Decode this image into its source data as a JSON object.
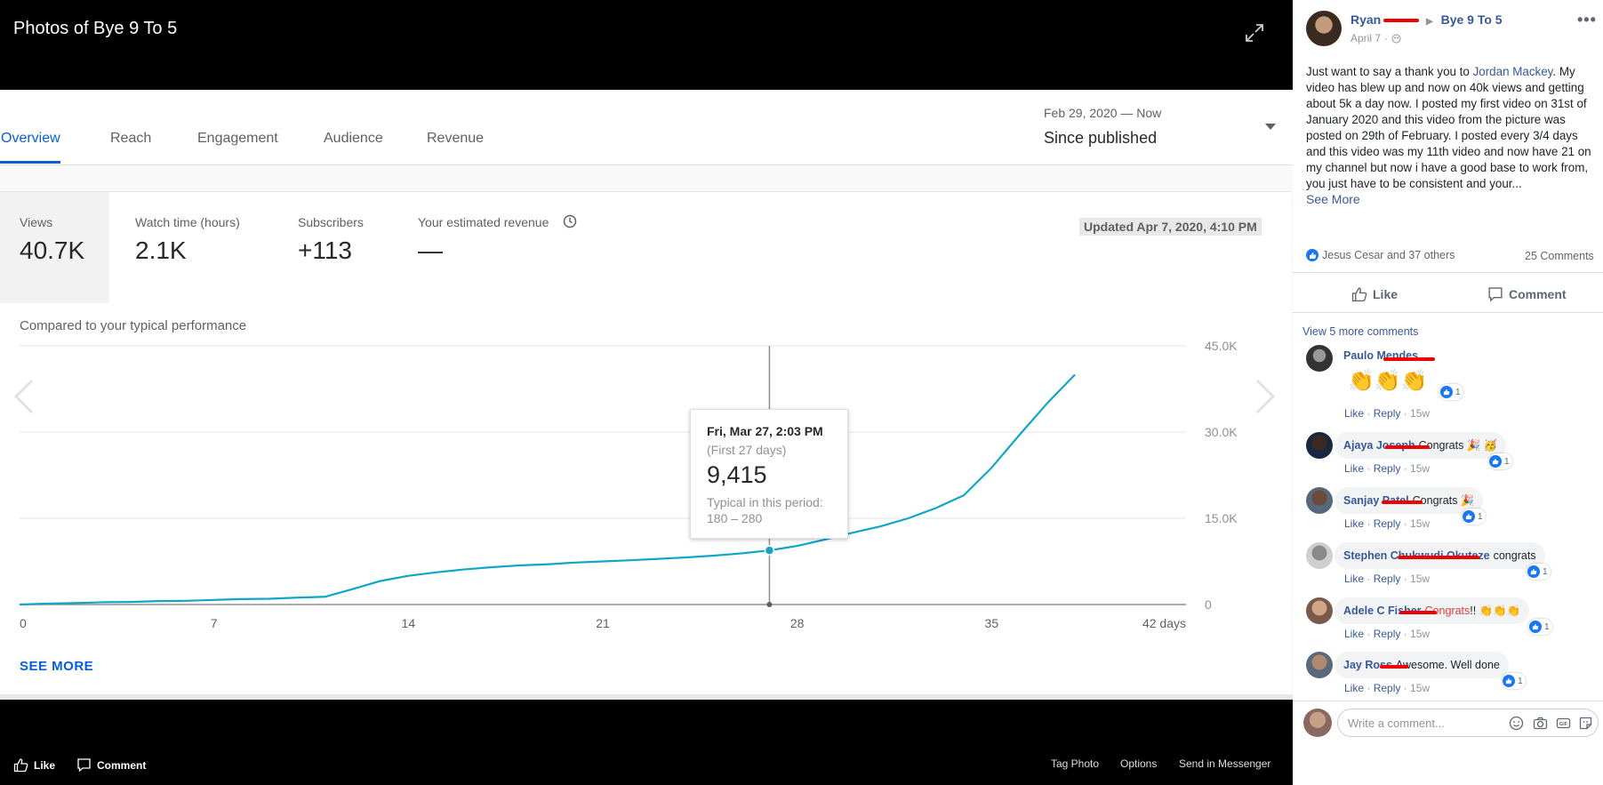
{
  "viewer": {
    "title": "Photos of Bye 9 To 5",
    "bottom_like": "Like",
    "bottom_comment": "Comment",
    "tag_photo": "Tag Photo",
    "options": "Options",
    "send_messenger": "Send in Messenger"
  },
  "analytics": {
    "tabs": [
      "Overview",
      "Reach",
      "Engagement",
      "Audience",
      "Revenue"
    ],
    "active_tab": "Overview",
    "range_dates": "Feb 29, 2020 — Now",
    "range_label": "Since published",
    "metrics": [
      {
        "label": "Views",
        "value": "40.7K"
      },
      {
        "label": "Watch time (hours)",
        "value": "2.1K"
      },
      {
        "label": "Subscribers",
        "value": "+113"
      },
      {
        "label": "Your estimated revenue",
        "value": "—"
      }
    ],
    "updated": "Updated Apr 7, 2020, 4:10 PM",
    "compared": "Compared to your typical performance",
    "see_more": "SEE MORE",
    "tooltip": {
      "date": "Fri, Mar 27, 2:03 PM",
      "sub": "(First 27 days)",
      "value": "9,415",
      "typical_label": "Typical in this period:",
      "typical_range": "180 – 280"
    }
  },
  "chart_data": {
    "type": "line",
    "x_tick_labels": [
      "0",
      "7",
      "14",
      "21",
      "28",
      "35",
      "42 days"
    ],
    "x_ticks": [
      0,
      7,
      14,
      21,
      28,
      35,
      42
    ],
    "y_tick_labels": [
      "0",
      "15.0K",
      "30.0K",
      "45.0K"
    ],
    "y_ticks": [
      0,
      15000,
      30000,
      45000
    ],
    "xlim": [
      0,
      42
    ],
    "ylim": [
      0,
      45000
    ],
    "grid": true,
    "highlight_x": 27,
    "series": [
      {
        "x": [
          0,
          1,
          2,
          3,
          4,
          5,
          6,
          7,
          8,
          9,
          10,
          11,
          12,
          13,
          14,
          15,
          16,
          17,
          18,
          19,
          20,
          21,
          22,
          23,
          24,
          25,
          26,
          27,
          28,
          29,
          30,
          31,
          32,
          33,
          34,
          35,
          36,
          37,
          38
        ],
        "y": [
          0,
          150,
          250,
          400,
          450,
          600,
          650,
          800,
          950,
          1000,
          1200,
          1350,
          2700,
          4100,
          5000,
          5600,
          6100,
          6500,
          6800,
          7000,
          7300,
          7500,
          7700,
          7950,
          8200,
          8500,
          8900,
          9415,
          10200,
          11300,
          12500,
          13600,
          15000,
          16800,
          19000,
          23800,
          29500,
          35000,
          40000
        ],
        "color": "#12a5c5"
      }
    ]
  },
  "post": {
    "author": "Ryan",
    "group": "Bye 9 To 5",
    "date": "April 7",
    "text_before_link": "Just want to say a thank you to ",
    "link_name": "Jordan Mackey",
    "text_after_link": ". My video has blew up and now on 40k views and getting about 5k a day now. I posted my first video on 31st of January 2020 and this video from the picture was posted on 29th of February. I posted every 3/4 days and this video was my 11th video and now have 21 on my channel but now i have a good base to work from, you just have to be consistent and your...",
    "see_more": "See More",
    "reactions": "Jesus Cesar and 37 others",
    "comments_count": "25 Comments",
    "like": "Like",
    "comment": "Comment",
    "view_more_comments": "View 5 more comments",
    "write_placeholder": "Write a comment..."
  },
  "comments": [
    {
      "name": "Paulo Mendes",
      "text": "👏👏👏",
      "likes": "1",
      "meta_like": "Like",
      "meta_reply": "Reply",
      "time": "15w"
    },
    {
      "name": "Ajaya Joseph",
      "text": "Congrats 🎉 🥳",
      "likes": "1",
      "meta_like": "Like",
      "meta_reply": "Reply",
      "time": "15w"
    },
    {
      "name": "Sanjay Patel",
      "text": "Congrats 🎉",
      "likes": "1",
      "meta_like": "Like",
      "meta_reply": "Reply",
      "time": "15w"
    },
    {
      "name": "Stephen Chukwudi Okuteze",
      "text": "congrats",
      "likes": "1",
      "meta_like": "Like",
      "meta_reply": "Reply",
      "time": "15w"
    },
    {
      "name": "Adele C Fisher",
      "text_red": "Congrats",
      "text": "!! 👏👏👏",
      "likes": "1",
      "meta_like": "Like",
      "meta_reply": "Reply",
      "time": "15w"
    },
    {
      "name": "Jay Ross",
      "text": "Awesome. Well done",
      "likes": "1",
      "meta_like": "Like",
      "meta_reply": "Reply",
      "time": "15w"
    }
  ]
}
